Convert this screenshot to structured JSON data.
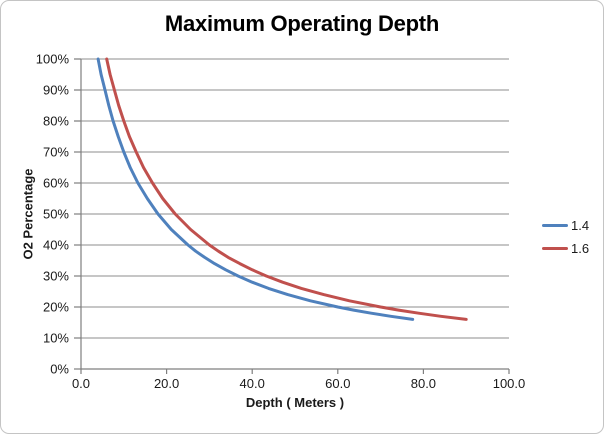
{
  "chart_data": {
    "type": "line",
    "title": "Maximum Operating Depth",
    "xlabel": "Depth ( Meters )",
    "ylabel": "O2 Percentage",
    "xlim": [
      0,
      100
    ],
    "ylim": [
      0,
      100
    ],
    "grid": "horizontal",
    "legend_position": "right",
    "x_ticks": {
      "values": [
        0,
        20,
        40,
        60,
        80,
        100
      ],
      "labels": [
        "0.0",
        "20.0",
        "40.0",
        "60.0",
        "80.0",
        "100.0"
      ]
    },
    "y_ticks": {
      "values": [
        0,
        10,
        20,
        30,
        40,
        50,
        60,
        70,
        80,
        90,
        100
      ],
      "labels": [
        "0%",
        "10%",
        "20%",
        "30%",
        "40%",
        "50%",
        "60%",
        "70%",
        "80%",
        "90%",
        "100%"
      ]
    },
    "colors": {
      "gridline": "#8c8c8c",
      "axis": "#7f7f7f",
      "tick_text": "#1a1a1a",
      "frame_border": "#c4c4c4"
    },
    "series": [
      {
        "name": "1.4",
        "color": "#4F81BD",
        "points": [
          [
            4.0,
            100
          ],
          [
            4.7,
            95
          ],
          [
            5.6,
            90
          ],
          [
            6.5,
            85
          ],
          [
            7.5,
            80
          ],
          [
            8.7,
            75
          ],
          [
            10.0,
            70
          ],
          [
            11.5,
            65
          ],
          [
            13.3,
            60
          ],
          [
            15.5,
            55
          ],
          [
            18.0,
            50
          ],
          [
            21.1,
            45
          ],
          [
            25.0,
            40
          ],
          [
            26.8,
            38
          ],
          [
            28.9,
            36
          ],
          [
            31.2,
            34
          ],
          [
            33.8,
            32
          ],
          [
            36.7,
            30
          ],
          [
            40.0,
            28
          ],
          [
            43.8,
            26
          ],
          [
            48.3,
            24
          ],
          [
            53.6,
            22
          ],
          [
            60.0,
            20
          ],
          [
            63.7,
            19
          ],
          [
            67.8,
            18
          ],
          [
            72.4,
            17
          ],
          [
            77.5,
            16
          ]
        ]
      },
      {
        "name": "1.6",
        "color": "#C0504D",
        "points": [
          [
            6.0,
            100
          ],
          [
            6.8,
            95
          ],
          [
            7.8,
            90
          ],
          [
            8.8,
            85
          ],
          [
            10.0,
            80
          ],
          [
            11.3,
            75
          ],
          [
            12.9,
            70
          ],
          [
            14.6,
            65
          ],
          [
            16.7,
            60
          ],
          [
            19.1,
            55
          ],
          [
            22.0,
            50
          ],
          [
            25.6,
            45
          ],
          [
            30.0,
            40
          ],
          [
            32.1,
            38
          ],
          [
            34.4,
            36
          ],
          [
            37.1,
            34
          ],
          [
            40.0,
            32
          ],
          [
            43.3,
            30
          ],
          [
            47.1,
            28
          ],
          [
            51.5,
            26
          ],
          [
            56.7,
            24
          ],
          [
            62.7,
            22
          ],
          [
            70.0,
            20
          ],
          [
            74.2,
            19
          ],
          [
            78.9,
            18
          ],
          [
            84.1,
            17
          ],
          [
            90.0,
            16
          ]
        ]
      }
    ]
  }
}
